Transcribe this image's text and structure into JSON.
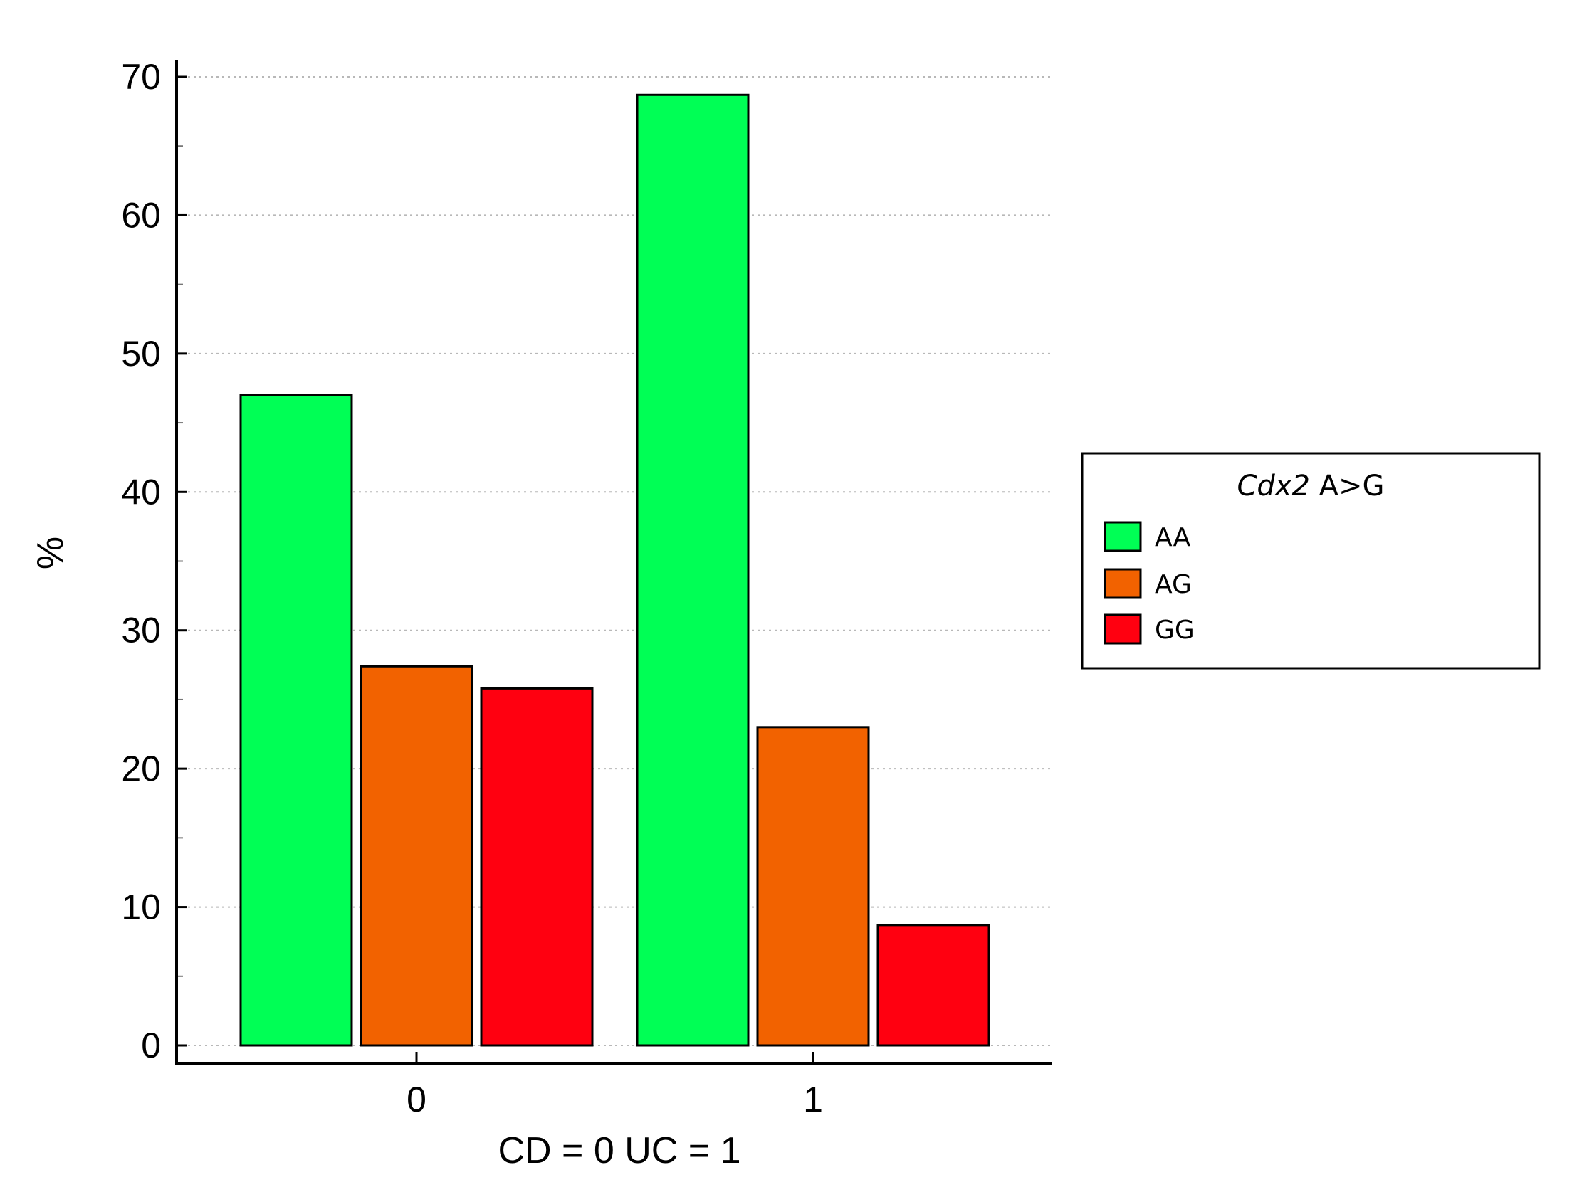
{
  "chart_data": {
    "type": "bar",
    "title": "",
    "xlabel": "CD = 0 UC = 1",
    "ylabel": "%",
    "categories": [
      "0",
      "1"
    ],
    "ylim": [
      0,
      70
    ],
    "yticks": [
      "0",
      "10",
      "20",
      "30",
      "40",
      "50",
      "60",
      "70"
    ],
    "grid": "horizontal dotted",
    "series": [
      {
        "name": "AA",
        "color": "#00FF55",
        "values": [
          47.0,
          68.7
        ]
      },
      {
        "name": "AG",
        "color": "#F26200",
        "values": [
          27.4,
          23.0
        ]
      },
      {
        "name": "GG",
        "color": "#FF0010",
        "values": [
          25.8,
          8.7
        ]
      }
    ],
    "legend": {
      "title_italic": "Cdx2",
      "title_rest": " A>G",
      "placement": "right",
      "entries": [
        "AA",
        "AG",
        "GG"
      ]
    }
  }
}
